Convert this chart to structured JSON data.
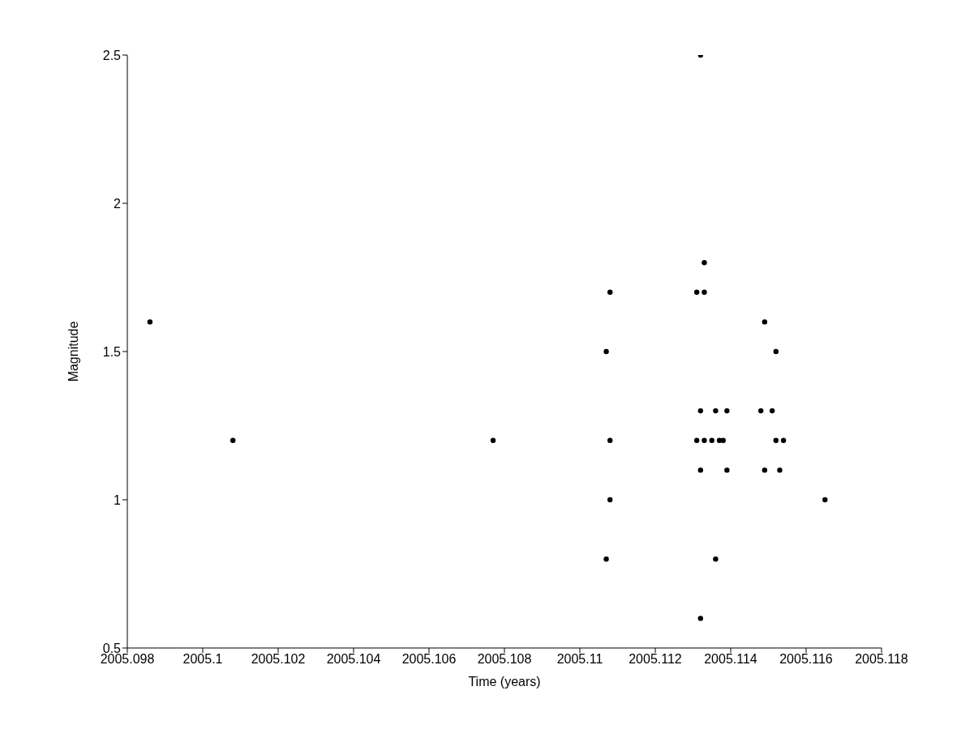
{
  "chart_data": {
    "type": "scatter",
    "xlabel": "Time (years)",
    "ylabel": "Magnitude",
    "x": [
      2005.0986,
      2005.1008,
      2005.1077,
      2005.1107,
      2005.1107,
      2005.1108,
      2005.1108,
      2005.1108,
      2005.1131,
      2005.1131,
      2005.1132,
      2005.1132,
      2005.1132,
      2005.1132,
      2005.1133,
      2005.1133,
      2005.1133,
      2005.1135,
      2005.1136,
      2005.1136,
      2005.1137,
      2005.1138,
      2005.1139,
      2005.1139,
      2005.1148,
      2005.1149,
      2005.1149,
      2005.1151,
      2005.1152,
      2005.1152,
      2005.1153,
      2005.1154,
      2005.1165
    ],
    "values": [
      1.6,
      1.2,
      1.2,
      1.5,
      0.8,
      1.7,
      1.2,
      1.0,
      1.2,
      1.7,
      2.5,
      1.3,
      1.1,
      0.6,
      1.8,
      1.7,
      1.2,
      1.2,
      1.3,
      0.8,
      1.2,
      1.2,
      1.3,
      1.1,
      1.3,
      1.6,
      1.1,
      1.3,
      1.5,
      1.2,
      1.1,
      1.2,
      1.0
    ],
    "color": "#000000",
    "marker": "circle",
    "xlim": [
      2005.098,
      2005.118
    ],
    "xticks": [
      2005.098,
      2005.1,
      2005.102,
      2005.104,
      2005.106,
      2005.108,
      2005.11,
      2005.112,
      2005.114,
      2005.116,
      2005.118
    ],
    "ylim": [
      0.5,
      2.5
    ],
    "yticks": [
      0.5,
      1,
      1.5,
      2,
      2.5
    ],
    "grid": false,
    "legend": false
  }
}
